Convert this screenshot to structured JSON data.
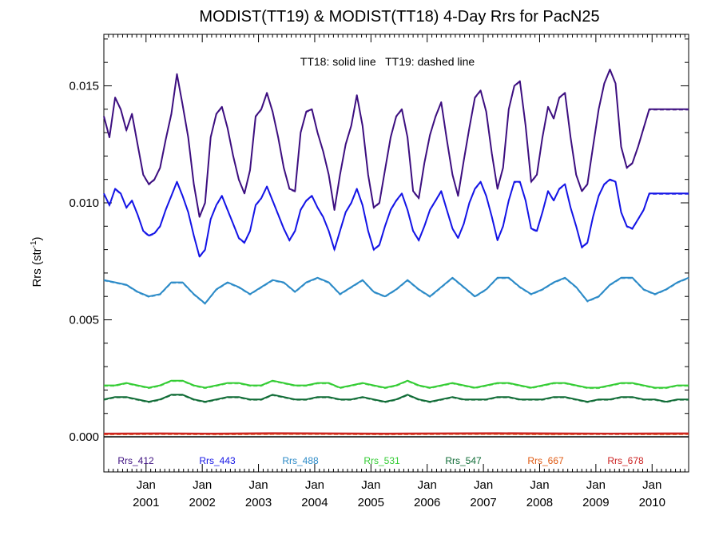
{
  "chart_data": {
    "type": "line",
    "title": "MODIST(TT19) & MODIST(TT18) 4-Day Rrs for PacN25",
    "annotation": "TT18: solid line   TT19: dashed line",
    "ylabel": "Rrs (str",
    "ylabel_sup": "-1",
    "ylabel_end": ")",
    "ylim": [
      -0.0015,
      0.0172
    ],
    "xlim": [
      2000.25,
      2010.65
    ],
    "yticks": [
      {
        "value": 0.0,
        "label": "0.000"
      },
      {
        "value": 0.005,
        "label": "0.005"
      },
      {
        "value": 0.01,
        "label": "0.010"
      },
      {
        "value": 0.015,
        "label": "0.015"
      }
    ],
    "xticks": [
      {
        "value": 2001.0,
        "month": "Jan",
        "year": "2001"
      },
      {
        "value": 2002.0,
        "month": "Jan",
        "year": "2002"
      },
      {
        "value": 2003.0,
        "month": "Jan",
        "year": "2003"
      },
      {
        "value": 2004.0,
        "month": "Jan",
        "year": "2004"
      },
      {
        "value": 2005.0,
        "month": "Jan",
        "year": "2005"
      },
      {
        "value": 2006.0,
        "month": "Jan",
        "year": "2006"
      },
      {
        "value": 2007.0,
        "month": "Jan",
        "year": "2007"
      },
      {
        "value": 2008.0,
        "month": "Jan",
        "year": "2008"
      },
      {
        "value": 2009.0,
        "month": "Jan",
        "year": "2009"
      },
      {
        "value": 2010.0,
        "month": "Jan",
        "year": "2010"
      }
    ],
    "series": [
      {
        "name": "Rrs_412",
        "color": "#3d0f80",
        "x": [
          2000.25,
          2000.35,
          2000.45,
          2000.55,
          2000.65,
          2000.75,
          2000.85,
          2000.95,
          2001.05,
          2001.15,
          2001.25,
          2001.35,
          2001.45,
          2001.55,
          2001.65,
          2001.75,
          2001.85,
          2001.95,
          2002.05,
          2002.15,
          2002.25,
          2002.35,
          2002.45,
          2002.55,
          2002.65,
          2002.75,
          2002.85,
          2002.95,
          2003.05,
          2003.15,
          2003.25,
          2003.35,
          2003.45,
          2003.55,
          2003.65,
          2003.75,
          2003.85,
          2003.95,
          2004.05,
          2004.15,
          2004.25,
          2004.35,
          2004.45,
          2004.55,
          2004.65,
          2004.75,
          2004.85,
          2004.95,
          2005.05,
          2005.15,
          2005.25,
          2005.35,
          2005.45,
          2005.55,
          2005.65,
          2005.75,
          2005.85,
          2005.95,
          2006.05,
          2006.15,
          2006.25,
          2006.35,
          2006.45,
          2006.55,
          2006.65,
          2006.75,
          2006.85,
          2006.95,
          2007.05,
          2007.15,
          2007.25,
          2007.35,
          2007.45,
          2007.55,
          2007.65,
          2007.75,
          2007.85,
          2007.95,
          2008.05,
          2008.15,
          2008.25,
          2008.35,
          2008.45,
          2008.55,
          2008.65,
          2008.75,
          2008.85,
          2008.95,
          2009.05,
          2009.15,
          2009.25,
          2009.35,
          2009.45,
          2009.55,
          2009.65,
          2009.75,
          2009.85,
          2009.95,
          2010.05,
          2010.15,
          2010.25,
          2010.35,
          2010.45,
          2010.55,
          2010.65
        ],
        "values": [
          0.0137,
          0.0128,
          0.0145,
          0.014,
          0.0131,
          0.0138,
          0.0125,
          0.0112,
          0.0108,
          0.011,
          0.0115,
          0.0127,
          0.0138,
          0.0155,
          0.0142,
          0.0128,
          0.0108,
          0.0094,
          0.01,
          0.0128,
          0.0138,
          0.0141,
          0.0132,
          0.012,
          0.011,
          0.0104,
          0.0114,
          0.0137,
          0.014,
          0.0147,
          0.0139,
          0.0128,
          0.0115,
          0.0106,
          0.0105,
          0.013,
          0.0139,
          0.014,
          0.013,
          0.0122,
          0.0112,
          0.0097,
          0.0112,
          0.0125,
          0.0133,
          0.0146,
          0.0133,
          0.0112,
          0.0098,
          0.01,
          0.0114,
          0.0128,
          0.0137,
          0.014,
          0.0128,
          0.0105,
          0.0102,
          0.0117,
          0.0129,
          0.0137,
          0.0143,
          0.0127,
          0.0112,
          0.0103,
          0.0118,
          0.0132,
          0.0145,
          0.0148,
          0.0139,
          0.0121,
          0.0106,
          0.0115,
          0.014,
          0.015,
          0.0152,
          0.0133,
          0.0109,
          0.0112,
          0.0128,
          0.0141,
          0.0136,
          0.0145,
          0.0147,
          0.0128,
          0.0112,
          0.0105,
          0.0108,
          0.0124,
          0.014,
          0.0151,
          0.0157,
          0.0151,
          0.0124,
          0.0115,
          0.0117,
          0.0124,
          0.0132,
          0.014,
          0.014,
          0.014,
          0.014,
          0.014,
          0.014,
          0.014,
          0.014
        ]
      },
      {
        "name": "Rrs_443",
        "color": "#1414e6",
        "x": [
          2000.25,
          2000.35,
          2000.45,
          2000.55,
          2000.65,
          2000.75,
          2000.85,
          2000.95,
          2001.05,
          2001.15,
          2001.25,
          2001.35,
          2001.45,
          2001.55,
          2001.65,
          2001.75,
          2001.85,
          2001.95,
          2002.05,
          2002.15,
          2002.25,
          2002.35,
          2002.45,
          2002.55,
          2002.65,
          2002.75,
          2002.85,
          2002.95,
          2003.05,
          2003.15,
          2003.25,
          2003.35,
          2003.45,
          2003.55,
          2003.65,
          2003.75,
          2003.85,
          2003.95,
          2004.05,
          2004.15,
          2004.25,
          2004.35,
          2004.45,
          2004.55,
          2004.65,
          2004.75,
          2004.85,
          2004.95,
          2005.05,
          2005.15,
          2005.25,
          2005.35,
          2005.45,
          2005.55,
          2005.65,
          2005.75,
          2005.85,
          2005.95,
          2006.05,
          2006.15,
          2006.25,
          2006.35,
          2006.45,
          2006.55,
          2006.65,
          2006.75,
          2006.85,
          2006.95,
          2007.05,
          2007.15,
          2007.25,
          2007.35,
          2007.45,
          2007.55,
          2007.65,
          2007.75,
          2007.85,
          2007.95,
          2008.05,
          2008.15,
          2008.25,
          2008.35,
          2008.45,
          2008.55,
          2008.65,
          2008.75,
          2008.85,
          2008.95,
          2009.05,
          2009.15,
          2009.25,
          2009.35,
          2009.45,
          2009.55,
          2009.65,
          2009.75,
          2009.85,
          2009.95,
          2010.05,
          2010.15,
          2010.25,
          2010.35,
          2010.45,
          2010.55,
          2010.65
        ],
        "values": [
          0.0104,
          0.0099,
          0.0106,
          0.0104,
          0.0098,
          0.0101,
          0.0095,
          0.0088,
          0.0086,
          0.0087,
          0.009,
          0.0097,
          0.0103,
          0.0109,
          0.0103,
          0.0096,
          0.0086,
          0.0077,
          0.008,
          0.0093,
          0.0099,
          0.0103,
          0.0097,
          0.0091,
          0.0085,
          0.0083,
          0.0088,
          0.0099,
          0.0102,
          0.0107,
          0.0101,
          0.0095,
          0.0089,
          0.0084,
          0.0088,
          0.0097,
          0.0101,
          0.0103,
          0.0098,
          0.0094,
          0.0088,
          0.008,
          0.0088,
          0.0096,
          0.01,
          0.0106,
          0.0099,
          0.0088,
          0.008,
          0.0082,
          0.009,
          0.0097,
          0.0101,
          0.0104,
          0.0097,
          0.0088,
          0.0084,
          0.009,
          0.0097,
          0.0101,
          0.0105,
          0.0097,
          0.0089,
          0.0085,
          0.0091,
          0.01,
          0.0106,
          0.0109,
          0.0103,
          0.0094,
          0.0084,
          0.009,
          0.0101,
          0.0109,
          0.0109,
          0.0101,
          0.0089,
          0.0088,
          0.0096,
          0.0105,
          0.0101,
          0.0106,
          0.0108,
          0.0098,
          0.009,
          0.0081,
          0.0083,
          0.0094,
          0.0103,
          0.0108,
          0.011,
          0.0109,
          0.0096,
          0.009,
          0.0089,
          0.0093,
          0.0097,
          0.0104,
          0.0104,
          0.0104,
          0.0104,
          0.0104,
          0.0104,
          0.0104,
          0.0104
        ]
      },
      {
        "name": "Rrs_488",
        "color": "#2b8ac7",
        "x": [
          2000.25,
          2000.45,
          2000.65,
          2000.85,
          2001.05,
          2001.25,
          2001.45,
          2001.65,
          2001.85,
          2002.05,
          2002.25,
          2002.45,
          2002.65,
          2002.85,
          2003.05,
          2003.25,
          2003.45,
          2003.65,
          2003.85,
          2004.05,
          2004.25,
          2004.45,
          2004.65,
          2004.85,
          2005.05,
          2005.25,
          2005.45,
          2005.65,
          2005.85,
          2006.05,
          2006.25,
          2006.45,
          2006.65,
          2006.85,
          2007.05,
          2007.25,
          2007.45,
          2007.65,
          2007.85,
          2008.05,
          2008.25,
          2008.45,
          2008.65,
          2008.85,
          2009.05,
          2009.25,
          2009.45,
          2009.65,
          2009.85,
          2010.05,
          2010.25,
          2010.45,
          2010.65
        ],
        "values": [
          0.0067,
          0.0066,
          0.0065,
          0.0062,
          0.006,
          0.0061,
          0.0066,
          0.0066,
          0.0061,
          0.0057,
          0.0063,
          0.0066,
          0.0064,
          0.0061,
          0.0064,
          0.0067,
          0.0066,
          0.0062,
          0.0066,
          0.0068,
          0.0066,
          0.0061,
          0.0064,
          0.0067,
          0.0062,
          0.006,
          0.0063,
          0.0067,
          0.0063,
          0.006,
          0.0064,
          0.0068,
          0.0064,
          0.006,
          0.0063,
          0.0068,
          0.0068,
          0.0064,
          0.0061,
          0.0063,
          0.0066,
          0.0068,
          0.0064,
          0.0058,
          0.006,
          0.0065,
          0.0068,
          0.0068,
          0.0063,
          0.0061,
          0.0063,
          0.0066,
          0.0068
        ]
      },
      {
        "name": "Rrs_531",
        "color": "#33cc33",
        "x": [
          2000.25,
          2000.45,
          2000.65,
          2000.85,
          2001.05,
          2001.25,
          2001.45,
          2001.65,
          2001.85,
          2002.05,
          2002.25,
          2002.45,
          2002.65,
          2002.85,
          2003.05,
          2003.25,
          2003.45,
          2003.65,
          2003.85,
          2004.05,
          2004.25,
          2004.45,
          2004.65,
          2004.85,
          2005.05,
          2005.25,
          2005.45,
          2005.65,
          2005.85,
          2006.05,
          2006.25,
          2006.45,
          2006.65,
          2006.85,
          2007.05,
          2007.25,
          2007.45,
          2007.65,
          2007.85,
          2008.05,
          2008.25,
          2008.45,
          2008.65,
          2008.85,
          2009.05,
          2009.25,
          2009.45,
          2009.65,
          2009.85,
          2010.05,
          2010.25,
          2010.45,
          2010.65
        ],
        "values": [
          0.0022,
          0.0022,
          0.0023,
          0.0022,
          0.0021,
          0.0022,
          0.0024,
          0.0024,
          0.0022,
          0.0021,
          0.0022,
          0.0023,
          0.0023,
          0.0022,
          0.0022,
          0.0024,
          0.0023,
          0.0022,
          0.0022,
          0.0023,
          0.0023,
          0.0021,
          0.0022,
          0.0023,
          0.0022,
          0.0021,
          0.0022,
          0.0024,
          0.0022,
          0.0021,
          0.0022,
          0.0023,
          0.0022,
          0.0021,
          0.0022,
          0.0023,
          0.0023,
          0.0022,
          0.0021,
          0.0022,
          0.0023,
          0.0023,
          0.0022,
          0.0021,
          0.0021,
          0.0022,
          0.0023,
          0.0023,
          0.0022,
          0.0021,
          0.0021,
          0.0022,
          0.0022
        ]
      },
      {
        "name": "Rrs_547",
        "color": "#0e6b35",
        "x": [
          2000.25,
          2000.45,
          2000.65,
          2000.85,
          2001.05,
          2001.25,
          2001.45,
          2001.65,
          2001.85,
          2002.05,
          2002.25,
          2002.45,
          2002.65,
          2002.85,
          2003.05,
          2003.25,
          2003.45,
          2003.65,
          2003.85,
          2004.05,
          2004.25,
          2004.45,
          2004.65,
          2004.85,
          2005.05,
          2005.25,
          2005.45,
          2005.65,
          2005.85,
          2006.05,
          2006.25,
          2006.45,
          2006.65,
          2006.85,
          2007.05,
          2007.25,
          2007.45,
          2007.65,
          2007.85,
          2008.05,
          2008.25,
          2008.45,
          2008.65,
          2008.85,
          2009.05,
          2009.25,
          2009.45,
          2009.65,
          2009.85,
          2010.05,
          2010.25,
          2010.45,
          2010.65
        ],
        "values": [
          0.0016,
          0.0017,
          0.0017,
          0.0016,
          0.0015,
          0.0016,
          0.0018,
          0.0018,
          0.0016,
          0.0015,
          0.0016,
          0.0017,
          0.0017,
          0.0016,
          0.0016,
          0.0018,
          0.0017,
          0.0016,
          0.0016,
          0.0017,
          0.0017,
          0.0016,
          0.0016,
          0.0017,
          0.0016,
          0.0015,
          0.0016,
          0.0018,
          0.0016,
          0.0015,
          0.0016,
          0.0017,
          0.0016,
          0.0016,
          0.0016,
          0.0017,
          0.0017,
          0.0016,
          0.0016,
          0.0016,
          0.0017,
          0.0017,
          0.0016,
          0.0015,
          0.0016,
          0.0016,
          0.0017,
          0.0017,
          0.0016,
          0.0016,
          0.0015,
          0.0016,
          0.0016
        ]
      },
      {
        "name": "Rrs_667",
        "color": "#e05a12",
        "x": [
          2000.25,
          2001.25,
          2002.25,
          2003.25,
          2004.25,
          2005.25,
          2006.25,
          2007.25,
          2008.25,
          2009.25,
          2010.25,
          2010.65
        ],
        "values": [
          0.00012,
          0.00013,
          0.00012,
          0.00013,
          0.00013,
          0.00012,
          0.00013,
          0.00013,
          0.00012,
          0.00013,
          0.00012,
          0.00013
        ]
      },
      {
        "name": "Rrs_678",
        "color": "#cc2222",
        "x": [
          2000.25,
          2001.25,
          2002.25,
          2003.25,
          2004.25,
          2005.25,
          2006.25,
          2007.25,
          2008.25,
          2009.25,
          2010.25,
          2010.65
        ],
        "values": [
          0.00014,
          0.00015,
          0.00014,
          0.00016,
          0.00015,
          0.00014,
          0.00015,
          0.00016,
          0.00015,
          0.00014,
          0.00015,
          0.00015
        ]
      }
    ],
    "zero_line": {
      "value": 0.0,
      "color": "#000000"
    },
    "legend_placement": "bottom, inside plot"
  }
}
